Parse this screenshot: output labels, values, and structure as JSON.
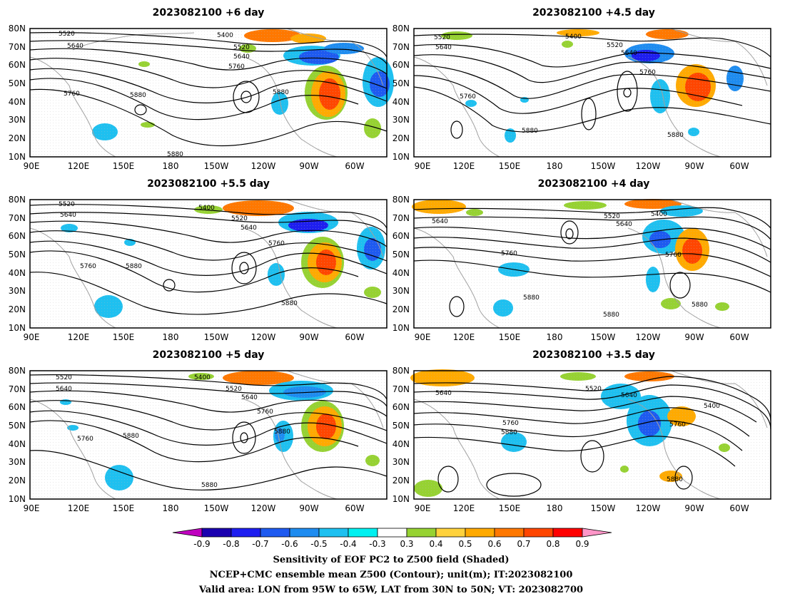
{
  "panels": [
    {
      "title": "2023082100 +6 day",
      "labels": [
        "5400",
        "5520",
        "5640",
        "5520",
        "5640",
        "5760",
        "5760",
        "5880",
        "5880",
        "5880"
      ]
    },
    {
      "title": "2023082100 +4.5 day",
      "labels": [
        "5400",
        "5520",
        "5640",
        "5520",
        "5640",
        "5760",
        "5760",
        "5880",
        "5880"
      ]
    },
    {
      "title": "2023082100 +5.5 day",
      "labels": [
        "5400",
        "5520",
        "5640",
        "5520",
        "5640",
        "5760",
        "5760",
        "5880",
        "5880"
      ]
    },
    {
      "title": "2023082100 +4 day",
      "labels": [
        "5400",
        "5520",
        "5640",
        "5640",
        "5760",
        "5760",
        "5880",
        "5880",
        "5880"
      ]
    },
    {
      "title": "2023082100 +5 day",
      "labels": [
        "5400",
        "5520",
        "5640",
        "5520",
        "5640",
        "5760",
        "5760",
        "5880",
        "5880",
        "5880"
      ]
    },
    {
      "title": "2023082100 +3.5 day",
      "labels": [
        "5520",
        "5640",
        "5640",
        "5400",
        "5760",
        "5760",
        "5880",
        "5880"
      ]
    }
  ],
  "map": {
    "lat_ticks": [
      "80N",
      "70N",
      "60N",
      "50N",
      "40N",
      "30N",
      "20N",
      "10N"
    ],
    "lon_ticks": [
      "90E",
      "120E",
      "150E",
      "180",
      "150W",
      "120W",
      "90W",
      "60W"
    ]
  },
  "colorbar": {
    "ticks": [
      "-0.9",
      "-0.8",
      "-0.7",
      "-0.6",
      "-0.5",
      "-0.4",
      "-0.3",
      "0.3",
      "0.4",
      "0.5",
      "0.6",
      "0.7",
      "0.8",
      "0.9"
    ],
    "colors": [
      "#c000c0",
      "#1a00b0",
      "#1e1ef0",
      "#1e5af0",
      "#1e8cf0",
      "#1ec0f0",
      "#00f0f0",
      "#ffffff",
      "#96d232",
      "#ffd23c",
      "#ffaa00",
      "#ff7800",
      "#ff4600",
      "#ff0000",
      "#ff96c8"
    ]
  },
  "caption": {
    "line1": "Sensitivity of EOF PC2 to Z500 field (Shaded)",
    "line2": "NCEP+CMC ensemble mean Z500 (Contour); unit(m); IT:2023082100",
    "line3": "Valid area: LON from 95W to 65W, LAT from 30N to 50N; VT: 2023082700"
  }
}
